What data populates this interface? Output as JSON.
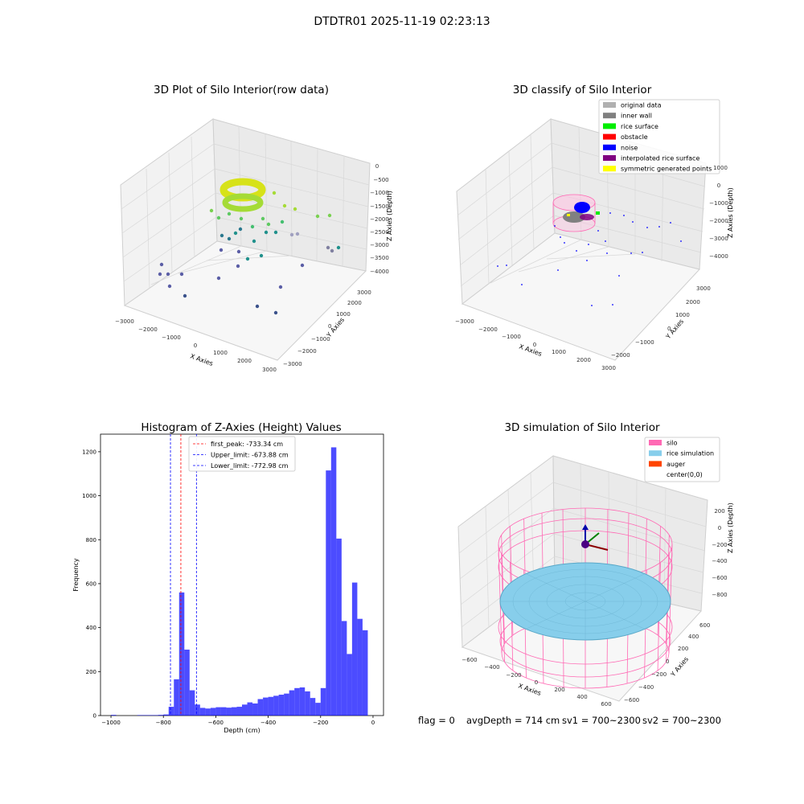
{
  "figure": {
    "suptitle": "DTDTR01 2025-11-19 02:23:13",
    "footer": {
      "flag": "flag = 0",
      "avg_depth": "avgDepth = 714 cm",
      "sv1": "sv1 = 700~2300",
      "sv2": "sv2 = 700~2300"
    }
  },
  "chart_data": [
    {
      "type": "scatter",
      "title": "3D Plot of Silo Interior(row data)",
      "xlabel": "X Axies",
      "ylabel": "Y Axies",
      "zlabel": "Z Axies (Depth)",
      "x_ticks": [
        "−3000",
        "−2000",
        "−1000",
        "0",
        "1000",
        "2000",
        "3000"
      ],
      "y_ticks": [
        "−3000",
        "−2000",
        "−1000",
        "0",
        "1000",
        "2000",
        "3000"
      ],
      "z_ticks": [
        "0",
        "−500",
        "−1000",
        "−1500",
        "−2000",
        "−2500",
        "−3000",
        "−3500",
        "−4000"
      ],
      "colormap": "viridis",
      "description_points": "dense ring of points near top centre, scattered points below"
    },
    {
      "type": "scatter",
      "title": "3D classify of Silo Interior",
      "xlabel": "X Axies",
      "ylabel": "Y Axies",
      "zlabel": "Z Axies (Depth)",
      "x_ticks": [
        "−3000",
        "−2000",
        "−1000",
        "0",
        "1000",
        "2000",
        "3000"
      ],
      "y_ticks": [
        "−2000",
        "−1000",
        "0",
        "1000",
        "2000",
        "3000"
      ],
      "z_ticks": [
        "1000",
        "0",
        "−1000",
        "−2000",
        "−3000",
        "−4000"
      ],
      "legend": [
        {
          "label": "original data",
          "color": "#b0b0b0"
        },
        {
          "label": "inner wall",
          "color": "#808080"
        },
        {
          "label": "rice surface",
          "color": "#00ee00"
        },
        {
          "label": "obstacle",
          "color": "#ff0000"
        },
        {
          "label": "noise",
          "color": "#0000ff"
        },
        {
          "label": "interpolated rice surface",
          "color": "#800080"
        },
        {
          "label": "symmetric generated points",
          "color": "#ffff00"
        }
      ],
      "legend_placement": "top-right"
    },
    {
      "type": "bar",
      "title": "Histogram of Z-Axies (Height) Values",
      "xlabel": "Depth (cm)",
      "ylabel": "Frequency",
      "xlim": [
        -1040,
        40
      ],
      "ylim": [
        0,
        1280
      ],
      "x_ticks": [
        -1000,
        -800,
        -600,
        -400,
        -200,
        0
      ],
      "x_tick_labels": [
        "−1000",
        "−800",
        "−600",
        "−400",
        "−200",
        "0"
      ],
      "y_ticks": [
        0,
        200,
        400,
        600,
        800,
        1000,
        1200
      ],
      "bar_color": "#0000ff",
      "bin_width": 20,
      "bins": [
        {
          "x": -1000,
          "v": 3
        },
        {
          "x": -900,
          "v": 2
        },
        {
          "x": -880,
          "v": 2
        },
        {
          "x": -860,
          "v": 2
        },
        {
          "x": -840,
          "v": 2
        },
        {
          "x": -820,
          "v": 3
        },
        {
          "x": -800,
          "v": 5
        },
        {
          "x": -780,
          "v": 40
        },
        {
          "x": -760,
          "v": 165
        },
        {
          "x": -740,
          "v": 560
        },
        {
          "x": -720,
          "v": 300
        },
        {
          "x": -700,
          "v": 115
        },
        {
          "x": -680,
          "v": 50
        },
        {
          "x": -660,
          "v": 35
        },
        {
          "x": -640,
          "v": 32
        },
        {
          "x": -620,
          "v": 35
        },
        {
          "x": -600,
          "v": 38
        },
        {
          "x": -580,
          "v": 38
        },
        {
          "x": -560,
          "v": 36
        },
        {
          "x": -540,
          "v": 38
        },
        {
          "x": -520,
          "v": 40
        },
        {
          "x": -500,
          "v": 50
        },
        {
          "x": -480,
          "v": 60
        },
        {
          "x": -460,
          "v": 55
        },
        {
          "x": -440,
          "v": 75
        },
        {
          "x": -420,
          "v": 82
        },
        {
          "x": -400,
          "v": 85
        },
        {
          "x": -380,
          "v": 90
        },
        {
          "x": -360,
          "v": 95
        },
        {
          "x": -340,
          "v": 100
        },
        {
          "x": -320,
          "v": 115
        },
        {
          "x": -300,
          "v": 125
        },
        {
          "x": -280,
          "v": 128
        },
        {
          "x": -260,
          "v": 110
        },
        {
          "x": -240,
          "v": 80
        },
        {
          "x": -220,
          "v": 58
        },
        {
          "x": -200,
          "v": 125
        },
        {
          "x": -180,
          "v": 1115
        },
        {
          "x": -160,
          "v": 1220
        },
        {
          "x": -140,
          "v": 805
        },
        {
          "x": -120,
          "v": 430
        },
        {
          "x": -100,
          "v": 280
        },
        {
          "x": -80,
          "v": 605
        },
        {
          "x": -60,
          "v": 440
        },
        {
          "x": -40,
          "v": 388
        }
      ],
      "lines": [
        {
          "label": "first_peak: -733.34 cm",
          "x": -733.34,
          "color": "#ff0000"
        },
        {
          "label": "Upper_limit: -673.88 cm",
          "x": -673.88,
          "color": "#0000ff"
        },
        {
          "label": "Lower_limit: -772.98 cm",
          "x": -772.98,
          "color": "#0000ff"
        }
      ],
      "legend_placement": "top-center"
    },
    {
      "type": "scatter",
      "title": "3D simulation of Silo Interior",
      "xlabel": "X Axies",
      "ylabel": "Y Axies",
      "zlabel": "Z Axies (Depth)",
      "x_ticks": [
        "−600",
        "−400",
        "−200",
        "0",
        "200",
        "400",
        "600"
      ],
      "y_ticks": [
        "−600",
        "−400",
        "−200",
        "0",
        "200",
        "400",
        "600"
      ],
      "z_ticks": [
        "200",
        "0",
        "−200",
        "−400",
        "−600",
        "−800"
      ],
      "legend": [
        {
          "label": "silo",
          "color": "#ff69b4"
        },
        {
          "label": "rice simulation",
          "color": "#87ceeb"
        },
        {
          "label": "auger",
          "color": "#ff4500"
        },
        {
          "label": "center(0,0)",
          "color": ""
        }
      ],
      "legend_placement": "top-right"
    }
  ]
}
